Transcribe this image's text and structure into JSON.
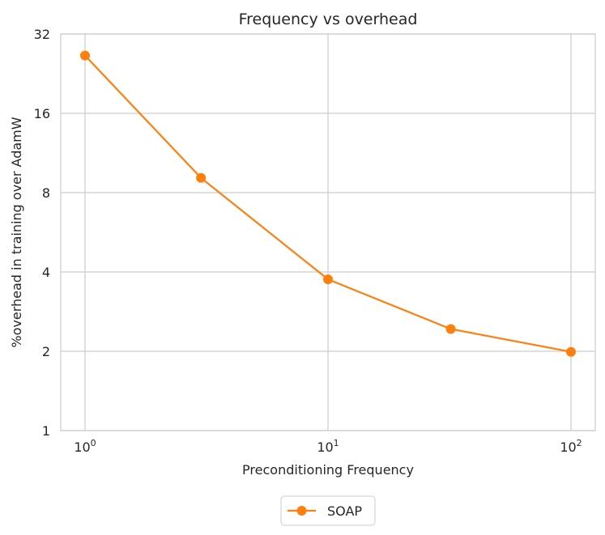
{
  "chart_data": {
    "type": "line",
    "title": "Frequency vs overhead",
    "xlabel": "Preconditioning Frequency",
    "ylabel": "%overhead in training over AdamW",
    "xscale": "log10",
    "yscale": "log2",
    "xlim": [
      1,
      100
    ],
    "ylim": [
      1,
      32
    ],
    "xticks": [
      {
        "value": 1,
        "base": "10",
        "exp": "0"
      },
      {
        "value": 10,
        "base": "10",
        "exp": "1"
      },
      {
        "value": 100,
        "base": "10",
        "exp": "2"
      }
    ],
    "yticks": [
      {
        "value": 1,
        "label": "1"
      },
      {
        "value": 2,
        "label": "2"
      },
      {
        "value": 4,
        "label": "4"
      },
      {
        "value": 8,
        "label": "8"
      },
      {
        "value": 16,
        "label": "16"
      },
      {
        "value": 32,
        "label": "32"
      }
    ],
    "grid": true,
    "legend_position": "below",
    "series": [
      {
        "name": "SOAP",
        "color": "#ff7f0e",
        "x": [
          1,
          3,
          10,
          32,
          100
        ],
        "y": [
          26.5,
          9.1,
          3.75,
          2.43,
          1.99
        ]
      }
    ]
  }
}
